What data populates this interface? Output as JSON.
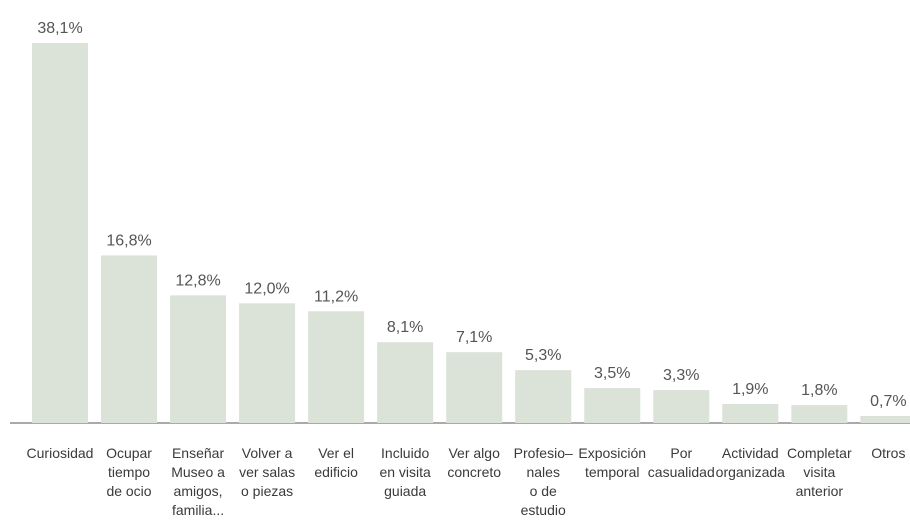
{
  "chart_data": {
    "type": "bar",
    "categories": [
      "Curiosidad",
      "Ocupar\ntiempo\nde ocio",
      "Enseñar\nMuseo a\namigos,\nfamilia...",
      "Volver a\nver salas\no piezas",
      "Ver el\nedificio",
      "Incluido\nen visita\nguiada",
      "Ver algo\nconcreto",
      "Profesio–\nnales\no de\nestudio",
      "Exposición\ntemporal",
      "Por\ncasualidad",
      "Actividad\norganizada",
      "Completar\nvisita\nanterior",
      "Otros"
    ],
    "values": [
      38.1,
      16.8,
      12.8,
      12.0,
      11.2,
      8.1,
      7.1,
      5.3,
      3.5,
      3.3,
      1.9,
      1.8,
      0.7
    ],
    "value_labels": [
      "38,1%",
      "16,8%",
      "12,8%",
      "12,0%",
      "11,2%",
      "8,1%",
      "7,1%",
      "5,3%",
      "3,5%",
      "3,3%",
      "1,9%",
      "1,8%",
      "0,7%"
    ],
    "color": "#dbe2d8"
  }
}
